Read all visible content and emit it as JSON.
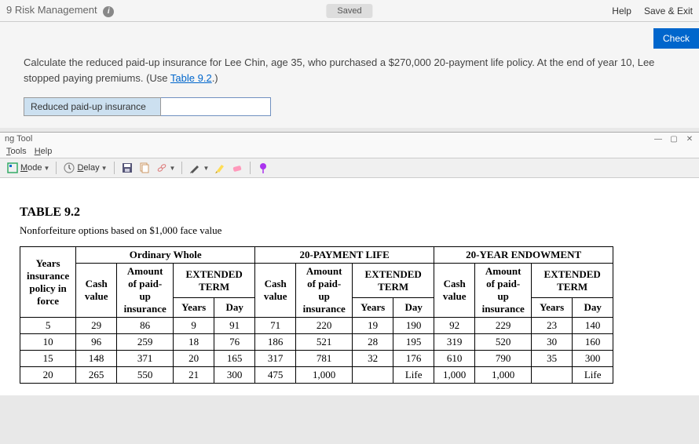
{
  "header": {
    "title": "9 Risk Management",
    "saved_label": "Saved",
    "help_label": "Help",
    "save_exit_label": "Save & Exit",
    "check_label": "Check"
  },
  "question": {
    "text_before_link": "Calculate the reduced paid-up insurance for Lee Chin, age 35, who purchased a $270,000 20-payment life policy. At the end of year 10, Lee stopped paying premiums. (Use ",
    "link_text": "Table 9.2",
    "text_after_link": ".)",
    "answer_label": "Reduced paid-up insurance",
    "answer_value": ""
  },
  "tool": {
    "title": "ng Tool",
    "menu_tools": "Tools",
    "menu_help": "Help",
    "mode_label": "Mode",
    "delay_label": "Delay"
  },
  "table": {
    "title": "TABLE 9.2",
    "subtitle": "Nonforfeiture options based on $1,000 face value",
    "group_headers": [
      "Ordinary Whole",
      "20-PAYMENT LIFE",
      "20-YEAR ENDOWMENT"
    ],
    "years_header": "Years insurance policy in force",
    "sub_headers": {
      "cash": "Cash value",
      "paidup": "Amount of paid-up insurance",
      "ext": "EXTENDED TERM",
      "ext_years": "Years",
      "ext_day": "Day"
    },
    "rows": [
      {
        "y": "5",
        "ow_cv": "29",
        "ow_pu": "86",
        "ow_ey": "9",
        "ow_ed": "91",
        "pl_cv": "71",
        "pl_pu": "220",
        "pl_ey": "19",
        "pl_ed": "190",
        "en_cv": "92",
        "en_pu": "229",
        "en_ey": "23",
        "en_ed": "140"
      },
      {
        "y": "10",
        "ow_cv": "96",
        "ow_pu": "259",
        "ow_ey": "18",
        "ow_ed": "76",
        "pl_cv": "186",
        "pl_pu": "521",
        "pl_ey": "28",
        "pl_ed": "195",
        "en_cv": "319",
        "en_pu": "520",
        "en_ey": "30",
        "en_ed": "160"
      },
      {
        "y": "15",
        "ow_cv": "148",
        "ow_pu": "371",
        "ow_ey": "20",
        "ow_ed": "165",
        "pl_cv": "317",
        "pl_pu": "781",
        "pl_ey": "32",
        "pl_ed": "176",
        "en_cv": "610",
        "en_pu": "790",
        "en_ey": "35",
        "en_ed": "300"
      },
      {
        "y": "20",
        "ow_cv": "265",
        "ow_pu": "550",
        "ow_ey": "21",
        "ow_ed": "300",
        "pl_cv": "475",
        "pl_pu": "1,000",
        "pl_ey": "",
        "pl_ed": "Life",
        "en_cv": "1,000",
        "en_pu": "1,000",
        "en_ey": "",
        "en_ed": "Life"
      }
    ]
  }
}
